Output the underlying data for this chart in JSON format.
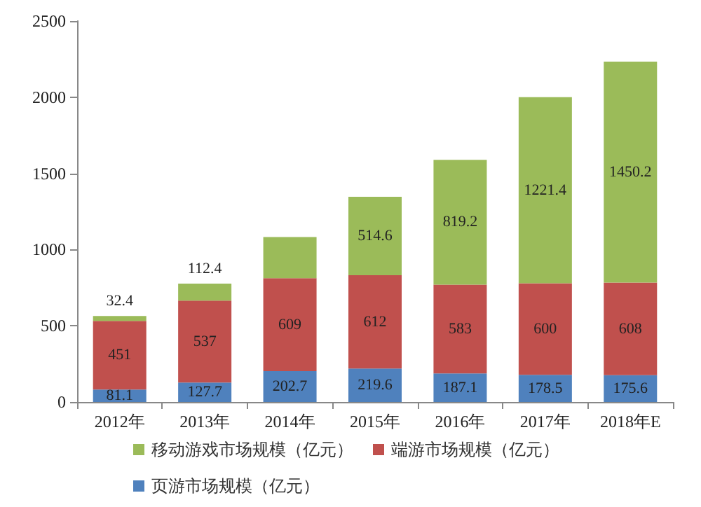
{
  "chart_data": {
    "type": "bar",
    "stacked": true,
    "categories": [
      "2012年",
      "2013年",
      "2014年",
      "2015年",
      "2016年",
      "2017年",
      "2018年E"
    ],
    "series": [
      {
        "name": "页游市场规模（亿元）",
        "color": "#4f81bd",
        "values": [
          81.1,
          127.7,
          202.7,
          219.6,
          187.1,
          178.5,
          175.6
        ],
        "value_labels": [
          "81.1",
          "127.7",
          "202.7",
          "219.6",
          "187.1",
          "178.5",
          "175.6"
        ]
      },
      {
        "name": "端游市场规模（亿元）",
        "color": "#c0504d",
        "values": [
          451,
          537,
          609,
          612,
          583,
          600,
          608
        ],
        "value_labels": [
          "451",
          "537",
          "609",
          "612",
          "583",
          "600",
          "608"
        ]
      },
      {
        "name": "移动游戏市场规模（亿元）",
        "color": "#9bbb59",
        "values": [
          32.4,
          112.4,
          270,
          514.6,
          819.2,
          1221.4,
          1450.2
        ],
        "value_labels": [
          "32.4",
          "112.4",
          null,
          "514.6",
          "819.2",
          "1221.4",
          "1450.2"
        ]
      }
    ],
    "ylim": [
      0,
      2500
    ],
    "yticks": [
      0,
      500,
      1000,
      1500,
      2000,
      2500
    ],
    "grid": false,
    "legend": "bottom"
  }
}
